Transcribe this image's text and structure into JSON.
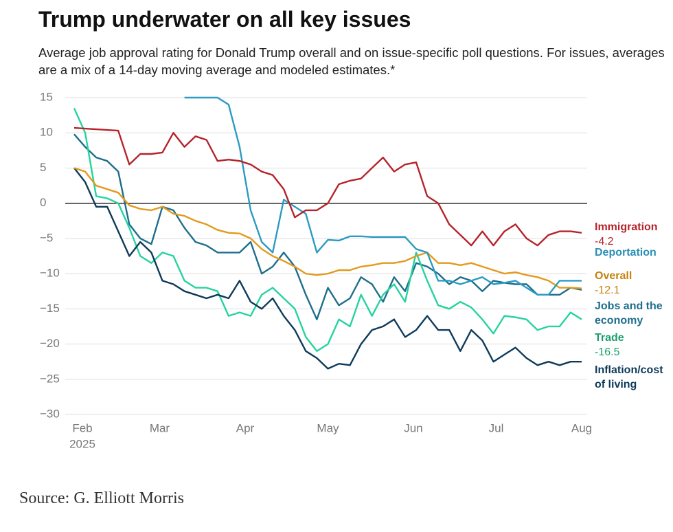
{
  "chart_data": {
    "type": "line",
    "title": "Trump underwater on all key issues",
    "subtitle": "Average job approval rating for Donald Trump overall and on issue-specific poll questions. For issues, averages are a mix of a 14-day moving average and modeled estimates.*",
    "source": "Source: G. Elliott Morris",
    "x": [
      29,
      33,
      37,
      41,
      45,
      49,
      53,
      57,
      61,
      65,
      69,
      73,
      77,
      81,
      85,
      89,
      93,
      97,
      101,
      105,
      109,
      113,
      117,
      121,
      125,
      129,
      133,
      137,
      141,
      145,
      149,
      153,
      157,
      161,
      165,
      169,
      173,
      177,
      181,
      185,
      189,
      193,
      197,
      201,
      205,
      209,
      213
    ],
    "xlim": [
      26,
      214
    ],
    "xticks": [
      {
        "value": 32,
        "label": "Feb"
      },
      {
        "value": 60,
        "label": "Mar"
      },
      {
        "value": 91,
        "label": "Apr"
      },
      {
        "value": 121,
        "label": "May"
      },
      {
        "value": 152,
        "label": "Jun"
      },
      {
        "value": 182,
        "label": "Jul"
      },
      {
        "value": 213,
        "label": "Aug"
      }
    ],
    "x_year_label": "2025",
    "ylim": [
      -30,
      15
    ],
    "yticks": [
      15,
      10,
      5,
      0,
      {
        "value": -5,
        "label": "−5"
      },
      {
        "value": -10,
        "label": "−10"
      },
      {
        "value": -15,
        "label": "−15"
      },
      {
        "value": -20,
        "label": "−20"
      },
      {
        "value": -25,
        "label": "−25"
      },
      {
        "value": -30,
        "label": "−30"
      }
    ],
    "grid": true,
    "series": [
      {
        "name": "Immigration",
        "color": "#b5232b",
        "label_color": "#b5232b",
        "values": [
          10.7,
          10.6,
          10.5,
          10.4,
          10.3,
          5.5,
          7,
          7,
          7.2,
          10,
          8,
          9.5,
          9,
          6,
          6.2,
          6,
          5.5,
          4.5,
          4,
          2,
          -2,
          -1,
          -1,
          0,
          2.7,
          3.2,
          3.5,
          5,
          6.5,
          4.5,
          5.5,
          5.8,
          1,
          0,
          -3,
          -4.5,
          -6,
          -4,
          -6,
          -4,
          -3,
          -5,
          -6,
          -4.5,
          -4,
          -4,
          -4.2
        ]
      },
      {
        "name": "Deportation",
        "color": "#2b9bc2",
        "label_color": "#2b8fb5",
        "values": [
          null,
          null,
          null,
          null,
          null,
          null,
          null,
          null,
          null,
          null,
          15,
          15,
          15,
          15,
          14,
          8,
          -1,
          -5.5,
          -7,
          0.5,
          -0.5,
          -1.5,
          -7,
          -5.2,
          -5.3,
          -4.7,
          -4.7,
          -4.8,
          -4.8,
          -4.8,
          -4.8,
          -6.5,
          -7,
          -11,
          -11,
          -11.5,
          -11,
          -10.5,
          -11.5,
          -11.3,
          -11,
          -12,
          -13,
          -13,
          -11,
          -11,
          -11
        ]
      },
      {
        "name": "Overall",
        "color": "#e39a1c",
        "label_color": "#c7810e",
        "values": [
          5,
          4.5,
          2.5,
          2,
          1.5,
          -0.3,
          -0.8,
          -1,
          -0.5,
          -1.5,
          -1.8,
          -2.5,
          -3,
          -3.8,
          -4.2,
          -4.3,
          -5,
          -6.5,
          -7.5,
          -8.2,
          -9,
          -10,
          -10.2,
          -10,
          -9.5,
          -9.5,
          -9,
          -8.8,
          -8.5,
          -8.5,
          -8.2,
          -7.5,
          -7,
          -8.5,
          -8.5,
          -8.8,
          -8.5,
          -9,
          -9.5,
          -10,
          -9.8,
          -10.2,
          -10.5,
          -11,
          -12,
          -12,
          -12.1
        ]
      },
      {
        "name": "Jobs and the economy",
        "color": "#1d6e8c",
        "label_color": "#1d6e8c",
        "values": [
          9.8,
          8,
          6.5,
          6,
          4.5,
          -3,
          -5,
          -5.8,
          -0.5,
          -1,
          -3.5,
          -5.5,
          -6,
          -7,
          -7,
          -7,
          -5.5,
          -10,
          -9,
          -7,
          -9,
          -13,
          -16.5,
          -12,
          -14.5,
          -13.5,
          -10.5,
          -11.5,
          -14,
          -10.5,
          -12.5,
          -8.5,
          -9,
          -10,
          -11.5,
          -10.5,
          -11,
          -12.5,
          -11,
          -11.3,
          -11.5,
          -11.5,
          -13,
          -13,
          -13,
          -12,
          -12.3
        ]
      },
      {
        "name": "Trade",
        "color": "#25d3a0",
        "label_color": "#1b9e6d",
        "values": [
          13.5,
          10,
          1,
          0.7,
          0,
          -3.5,
          -7.5,
          -8.5,
          -7,
          -7.5,
          -11,
          -12,
          -12,
          -12.5,
          -16,
          -15.5,
          -16,
          -13,
          -12,
          -13.5,
          -15,
          -19,
          -21,
          -20,
          -16.5,
          -17.5,
          -13,
          -16,
          -13,
          -11.5,
          -14,
          -7,
          -11,
          -14.5,
          -15,
          -14,
          -14.8,
          -16.5,
          -18.5,
          -16,
          -16.2,
          -16.5,
          -18,
          -17.5,
          -17.5,
          -15.5,
          -16.5
        ]
      },
      {
        "name": "Inflation/cost of living",
        "color": "#0e3a5a",
        "label_color": "#0e3a5a",
        "values": [
          5,
          3,
          -0.5,
          -0.5,
          -4,
          -7.5,
          -5.5,
          -7,
          -11,
          -11.5,
          -12.5,
          -13,
          -13.5,
          -13,
          -13.5,
          -11,
          -14,
          -15,
          -13.5,
          -16,
          -18,
          -21,
          -22,
          -23.5,
          -22.8,
          -23,
          -20,
          -18,
          -17.5,
          -16.5,
          -19,
          -18,
          -16,
          -18,
          -18,
          -21,
          -18,
          -19.5,
          -22.5,
          -21.5,
          -20.5,
          -22,
          -23,
          -22.5,
          -23,
          -22.5,
          -22.5
        ]
      }
    ]
  }
}
